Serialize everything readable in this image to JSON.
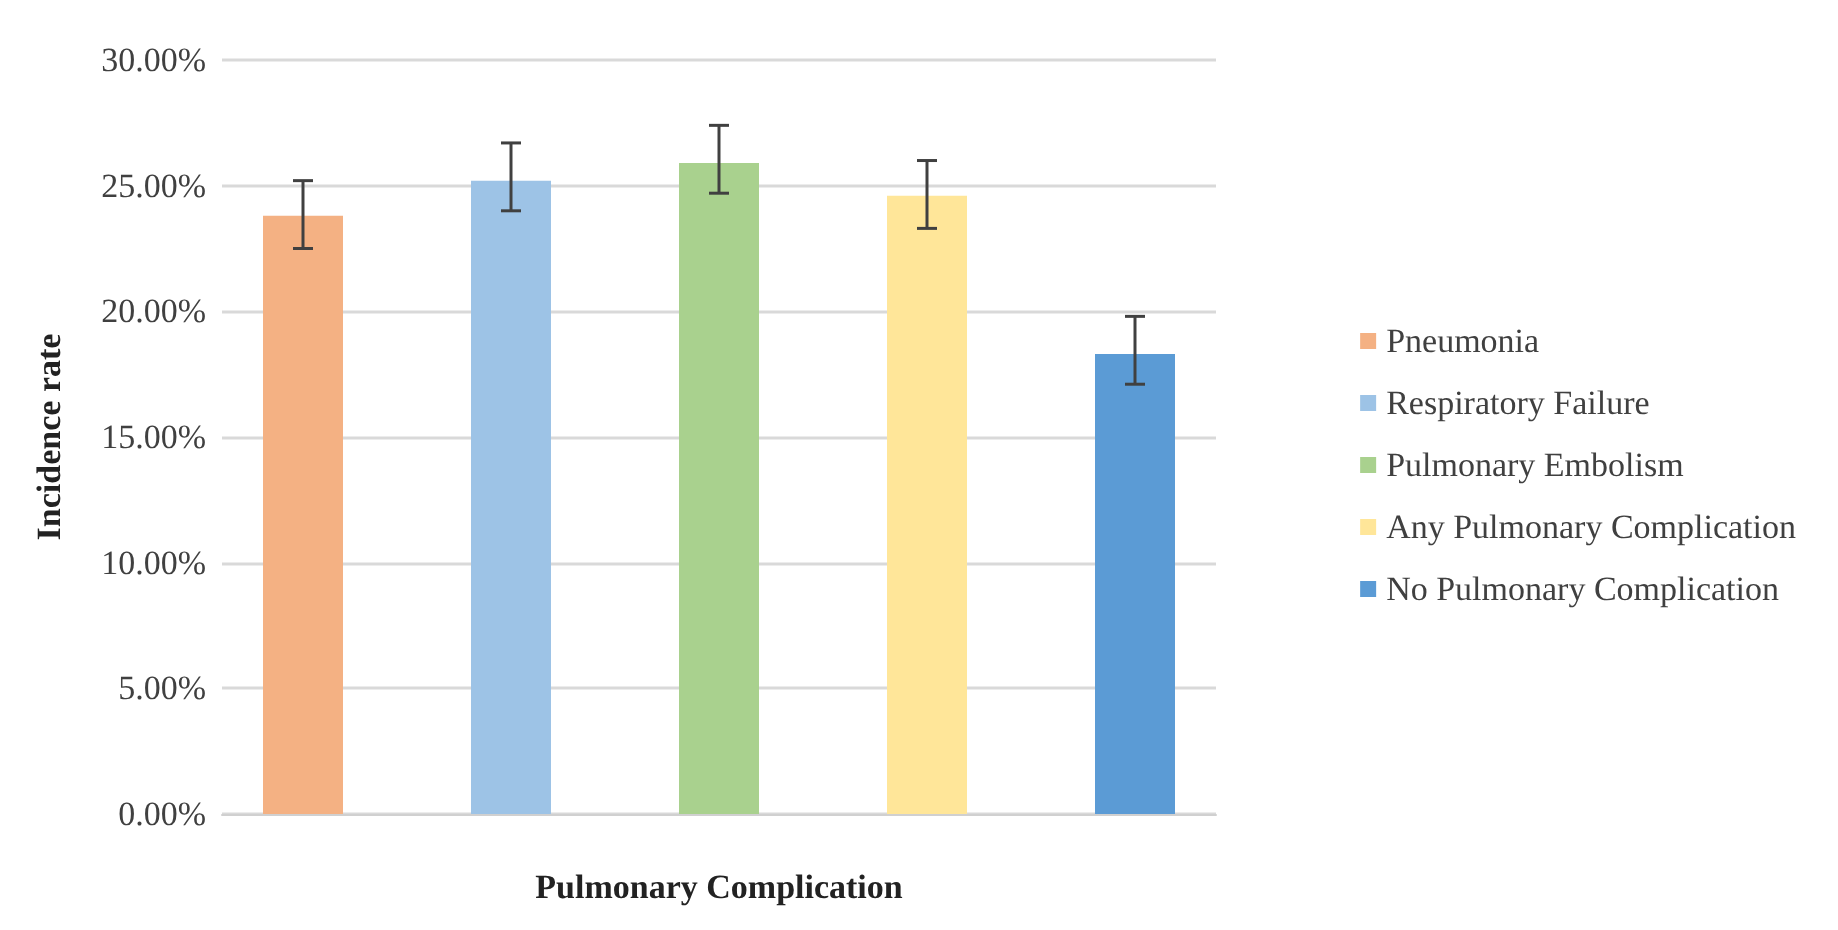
{
  "chart_data": {
    "type": "bar",
    "xlabel": "Pulmonary Complication",
    "ylabel": "Incidence rate",
    "categories": [
      null
    ],
    "series": [
      {
        "name": "Pneumonia",
        "color": "#f4b183",
        "values": [
          23.8
        ],
        "errors": [
          [
            22.5,
            25.2
          ]
        ]
      },
      {
        "name": "Respiratory Failure",
        "color": "#9dc3e6",
        "values": [
          25.2
        ],
        "errors": [
          [
            24.0,
            26.7
          ]
        ]
      },
      {
        "name": "Pulmonary Embolism",
        "color": "#a9d18e",
        "values": [
          25.9
        ],
        "errors": [
          [
            24.7,
            27.4
          ]
        ]
      },
      {
        "name": "Any Pulmonary Complication",
        "color": "#ffe699",
        "values": [
          24.6
        ],
        "errors": [
          [
            23.3,
            26.0
          ]
        ]
      },
      {
        "name": "No Pulmonary Complication",
        "color": "#5b9bd5",
        "values": [
          18.3
        ],
        "errors": [
          [
            17.1,
            19.8
          ]
        ]
      }
    ],
    "ylim": [
      0,
      30
    ],
    "yticks": [
      {
        "value": 0,
        "label": "0.00%"
      },
      {
        "value": 5,
        "label": "5.00%"
      },
      {
        "value": 10,
        "label": "10.00%"
      },
      {
        "value": 15,
        "label": "15.00%"
      },
      {
        "value": 20,
        "label": "20.00%"
      },
      {
        "value": 25,
        "label": "25.00%"
      },
      {
        "value": 30,
        "label": "30.00%"
      }
    ],
    "grid": "y",
    "legend": "right"
  }
}
